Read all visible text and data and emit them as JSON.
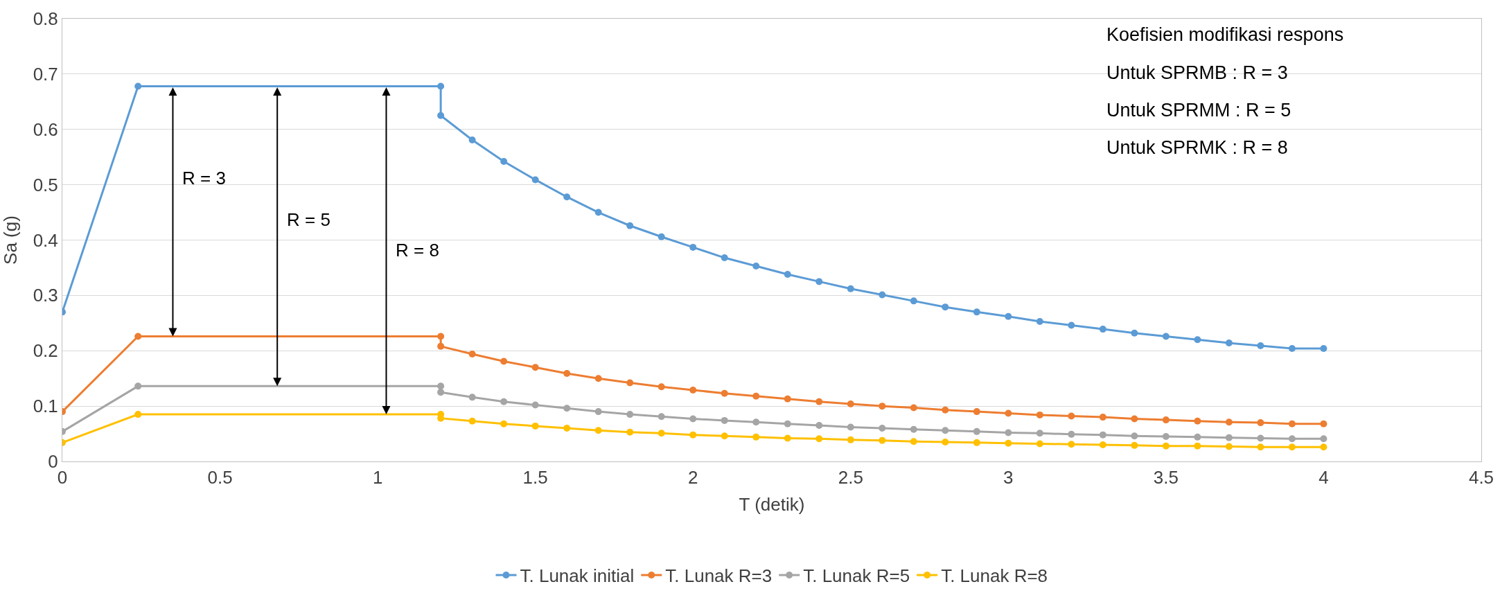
{
  "chart_data": {
    "type": "line",
    "xlabel": "T (detik)",
    "ylabel": "Sa (g)",
    "x": [
      0,
      0.24,
      1.2,
      1.2,
      1.3,
      1.4,
      1.5,
      1.6,
      1.7,
      1.8,
      1.9,
      2.0,
      2.1,
      2.2,
      2.3,
      2.4,
      2.5,
      2.6,
      2.7,
      2.8,
      2.9,
      3.0,
      3.1,
      3.2,
      3.3,
      3.4,
      3.5,
      3.6,
      3.7,
      3.8,
      3.9,
      4.0
    ],
    "series": [
      {
        "name": "T. Lunak initial",
        "color": "#5b9bd5",
        "values": [
          0.27,
          0.678,
          0.678,
          0.625,
          0.581,
          0.542,
          0.509,
          0.478,
          0.45,
          0.426,
          0.406,
          0.387,
          0.368,
          0.353,
          0.338,
          0.325,
          0.312,
          0.301,
          0.29,
          0.279,
          0.27,
          0.262,
          0.253,
          0.246,
          0.239,
          0.232,
          0.226,
          0.22,
          0.214,
          0.209,
          0.204,
          0.204
        ]
      },
      {
        "name": "T. Lunak R=3",
        "color": "#ed7d31",
        "values": [
          0.09,
          0.226,
          0.226,
          0.208,
          0.194,
          0.181,
          0.17,
          0.159,
          0.15,
          0.142,
          0.135,
          0.129,
          0.123,
          0.118,
          0.113,
          0.108,
          0.104,
          0.1,
          0.097,
          0.093,
          0.09,
          0.087,
          0.084,
          0.082,
          0.08,
          0.077,
          0.075,
          0.073,
          0.071,
          0.07,
          0.068,
          0.068
        ]
      },
      {
        "name": "T. Lunak R=5",
        "color": "#a5a5a5",
        "values": [
          0.054,
          0.136,
          0.136,
          0.125,
          0.116,
          0.108,
          0.102,
          0.096,
          0.09,
          0.085,
          0.081,
          0.077,
          0.074,
          0.071,
          0.068,
          0.065,
          0.062,
          0.06,
          0.058,
          0.056,
          0.054,
          0.052,
          0.051,
          0.049,
          0.048,
          0.046,
          0.045,
          0.044,
          0.043,
          0.042,
          0.041,
          0.041
        ]
      },
      {
        "name": "T. Lunak R=8",
        "color": "#ffc000",
        "values": [
          0.034,
          0.085,
          0.085,
          0.078,
          0.073,
          0.068,
          0.064,
          0.06,
          0.056,
          0.053,
          0.051,
          0.048,
          0.046,
          0.044,
          0.042,
          0.041,
          0.039,
          0.038,
          0.036,
          0.035,
          0.034,
          0.033,
          0.032,
          0.031,
          0.03,
          0.029,
          0.028,
          0.028,
          0.027,
          0.026,
          0.026,
          0.026
        ]
      }
    ],
    "xlim": [
      0,
      4.5
    ],
    "xticks": [
      0,
      0.5,
      1,
      1.5,
      2,
      2.5,
      3,
      3.5,
      4,
      4.5
    ],
    "ylim": [
      0,
      0.8
    ],
    "yticks": [
      0,
      0.1,
      0.2,
      0.3,
      0.4,
      0.5,
      0.6,
      0.7,
      0.8
    ],
    "grid": "y",
    "legend": "bottom",
    "marker": "circle",
    "line_style": "solid",
    "annotations": [
      "R = 3",
      "R = 5",
      "R = 8",
      "Koefisien modifikasi respons",
      "Untuk SPRMB : R = 3",
      "Untuk SPRMM : R = 5",
      "Untuk SPRMK : R = 8"
    ]
  }
}
